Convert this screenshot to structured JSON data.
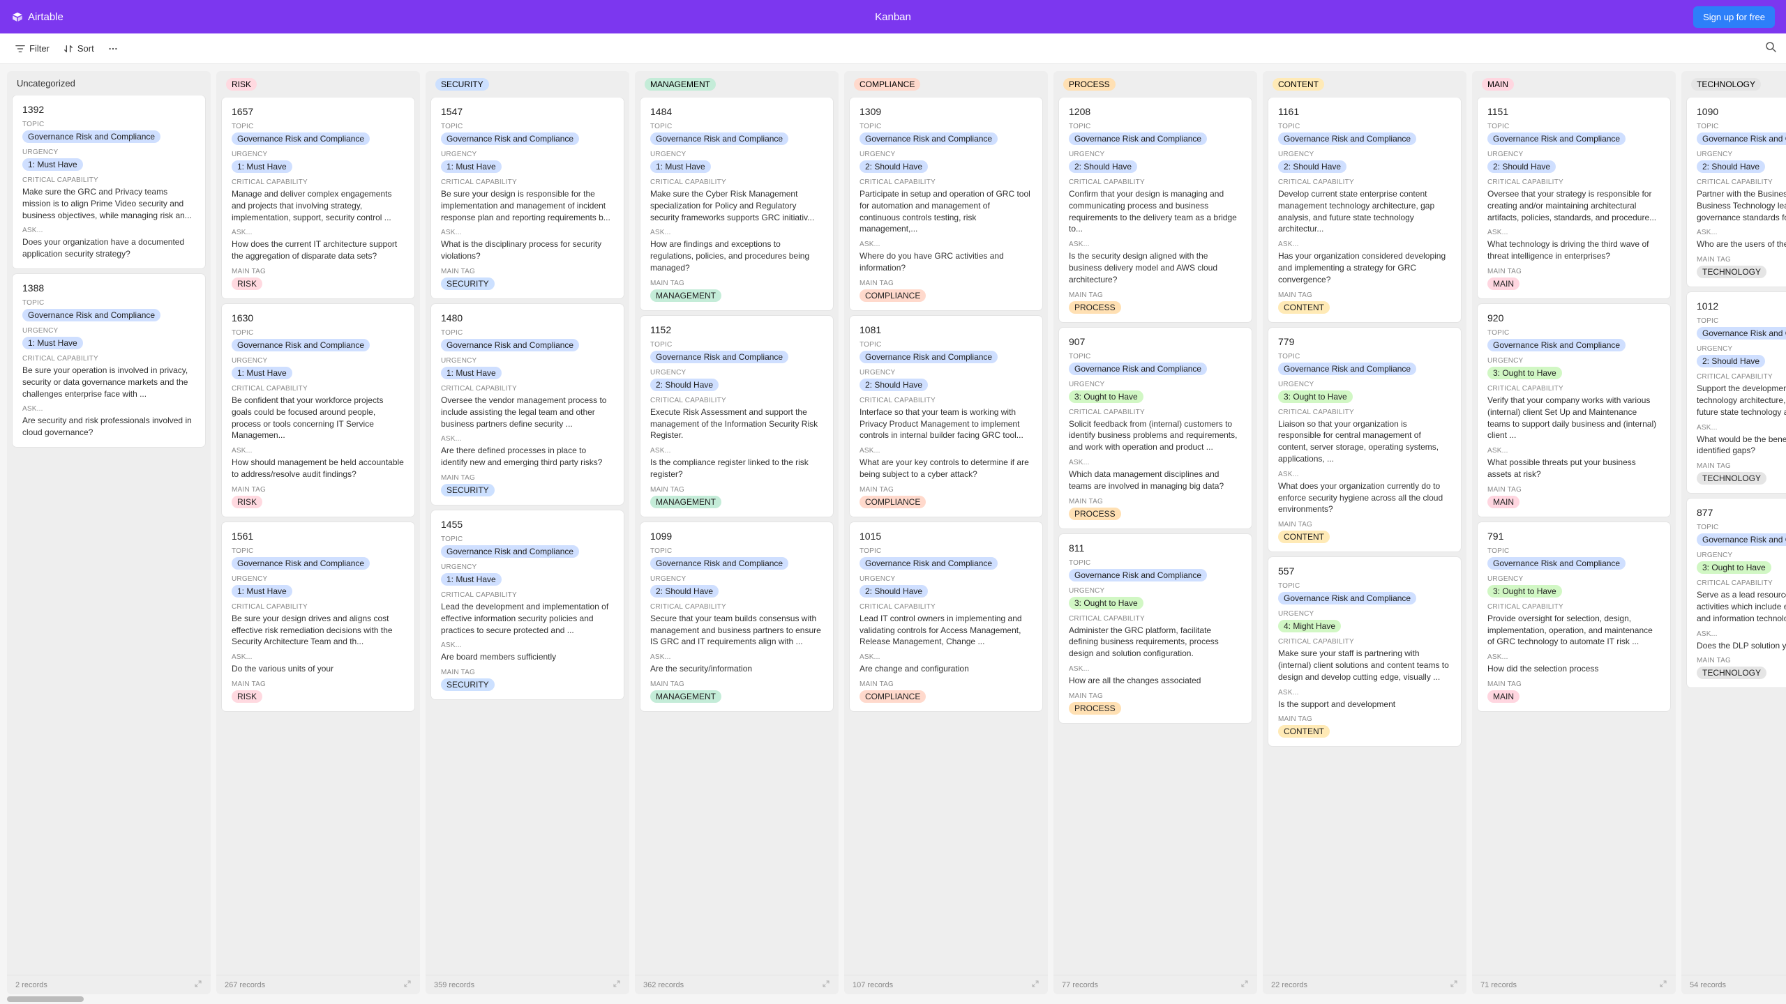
{
  "header": {
    "product": "Airtable",
    "view_title": "Kanban",
    "signup_label": "Sign up for free"
  },
  "toolbar": {
    "filter_label": "Filter",
    "sort_label": "Sort"
  },
  "field_labels": {
    "topic": "TOPIC",
    "urgency": "URGENCY",
    "capability": "CRITICAL CAPABILITY",
    "ask": "ASK...",
    "main_tag": "MAIN TAG"
  },
  "topic_pill": {
    "text": "Governance Risk and Compliance",
    "bg": "#cfdfff"
  },
  "urgency_colors": {
    "1: Must Have": "#cfdfff",
    "2: Should Have": "#cfdfff",
    "3: Ought to Have": "#d1f7c4",
    "4: Might Have": "#d1f7c4"
  },
  "tag_colors": {
    "RISK": "#ffd9e0",
    "SECURITY": "#cce0ff",
    "MANAGEMENT": "#c4ecd8",
    "COMPLIANCE": "#ffd9cc",
    "PROCESS": "#ffe0b3",
    "CONTENT": "#ffeab6",
    "MAIN": "#ffd6e0",
    "TECHNOLOGY": "#e5e5e5",
    "Uncategorized": ""
  },
  "columns": [
    {
      "name": "Uncategorized",
      "uncategorized": true,
      "records_label": "2 records",
      "cards": [
        {
          "id": "1392",
          "urgency": "1: Must Have",
          "capability": "Make sure the GRC and Privacy teams mission is to align Prime Video security and business objectives, while managing risk an...",
          "ask": "Does your organization have a documented application security strategy?",
          "main_tag": null
        },
        {
          "id": "1388",
          "urgency": "1: Must Have",
          "capability": "Be sure your operation is involved in privacy, security or data governance markets and the challenges enterprise face with ...",
          "ask": "Are security and risk professionals involved in cloud governance?",
          "main_tag": null
        }
      ]
    },
    {
      "name": "RISK",
      "records_label": "267 records",
      "cards": [
        {
          "id": "1657",
          "urgency": "1: Must Have",
          "capability": "Manage and deliver complex engagements and projects that involving strategy, implementation, support, security control ...",
          "ask": "How does the current IT architecture support the aggregation of disparate data sets?",
          "main_tag": "RISK"
        },
        {
          "id": "1630",
          "urgency": "1: Must Have",
          "capability": "Be confident that your workforce projects goals could be focused around people, process or tools concerning IT Service Managemen...",
          "ask": "How should management be held accountable to address/resolve audit findings?",
          "main_tag": "RISK"
        },
        {
          "id": "1561",
          "urgency": "1: Must Have",
          "capability": "Be sure your design drives and aligns cost effective risk remediation decisions with the Security Architecture Team and th...",
          "ask": "Do the various units of your",
          "main_tag": "RISK"
        }
      ]
    },
    {
      "name": "SECURITY",
      "records_label": "359 records",
      "cards": [
        {
          "id": "1547",
          "urgency": "1: Must Have",
          "capability": "Be sure your design is responsible for the implementation and management of incident response plan and reporting requirements b...",
          "ask": "What is the disciplinary process for security violations?",
          "main_tag": "SECURITY"
        },
        {
          "id": "1480",
          "urgency": "1: Must Have",
          "capability": "Oversee the vendor management process to include assisting the legal team and other business partners define security ...",
          "ask": "Are there defined processes in place to identify new and emerging third party risks?",
          "main_tag": "SECURITY"
        },
        {
          "id": "1455",
          "urgency": "1: Must Have",
          "capability": "Lead the development and implementation of effective information security policies and practices to secure protected and ...",
          "ask": "Are board members sufficiently",
          "main_tag": "SECURITY"
        }
      ]
    },
    {
      "name": "MANAGEMENT",
      "records_label": "362 records",
      "cards": [
        {
          "id": "1484",
          "urgency": "1: Must Have",
          "capability": "Make sure the Cyber Risk Management specialization for Policy and Regulatory security frameworks supports GRC initiativ...",
          "ask": "How are findings and exceptions to regulations, policies, and procedures being managed?",
          "main_tag": "MANAGEMENT"
        },
        {
          "id": "1152",
          "urgency": "2: Should Have",
          "capability": "Execute Risk Assessment and support the management of the Information Security Risk Register.",
          "ask": "Is the compliance register linked to the risk register?",
          "main_tag": "MANAGEMENT"
        },
        {
          "id": "1099",
          "urgency": "2: Should Have",
          "capability": "Secure that your team builds consensus with management and business partners to ensure IS GRC and IT requirements align with ...",
          "ask": "Are the security/information",
          "main_tag": "MANAGEMENT"
        }
      ]
    },
    {
      "name": "COMPLIANCE",
      "records_label": "107 records",
      "cards": [
        {
          "id": "1309",
          "urgency": "2: Should Have",
          "capability": "Participate in setup and operation of GRC tool for automation and management of continuous controls testing, risk management,...",
          "ask": "Where do you have GRC activities and information?",
          "main_tag": "COMPLIANCE"
        },
        {
          "id": "1081",
          "urgency": "2: Should Have",
          "capability": "Interface so that your team is working with Privacy Product Management to implement controls in internal builder facing GRC tool...",
          "ask": "What are your key controls to determine if are being subject to a cyber attack?",
          "main_tag": "COMPLIANCE"
        },
        {
          "id": "1015",
          "urgency": "2: Should Have",
          "capability": "Lead IT control owners in implementing and validating controls for Access Management, Release Management, Change ...",
          "ask": "Are change and configuration",
          "main_tag": "COMPLIANCE"
        }
      ]
    },
    {
      "name": "PROCESS",
      "records_label": "77 records",
      "cards": [
        {
          "id": "1208",
          "urgency": "2: Should Have",
          "capability": "Confirm that your design is managing and communicating process and business requirements to the delivery team as a bridge to...",
          "ask": "Is the security design aligned with the business delivery model and AWS cloud architecture?",
          "main_tag": "PROCESS"
        },
        {
          "id": "907",
          "urgency": "3: Ought to Have",
          "capability": "Solicit feedback from (internal) customers to identify business problems and requirements, and work with operation and product ...",
          "ask": "Which data management disciplines and teams are involved in managing big data?",
          "main_tag": "PROCESS"
        },
        {
          "id": "811",
          "urgency": "3: Ought to Have",
          "capability": "Administer the GRC platform, facilitate defining business requirements, process design and solution configuration.",
          "ask": "How are all the changes associated",
          "main_tag": "PROCESS"
        }
      ]
    },
    {
      "name": "CONTENT",
      "records_label": "22 records",
      "cards": [
        {
          "id": "1161",
          "urgency": "2: Should Have",
          "capability": "Develop current state enterprise content management technology architecture, gap analysis, and future state technology architectur...",
          "ask": "Has your organization considered developing and implementing a strategy for GRC convergence?",
          "main_tag": "CONTENT"
        },
        {
          "id": "779",
          "urgency": "3: Ought to Have",
          "capability": "Liaison so that your organization is responsible for central management of content, server storage, operating systems, applications, ...",
          "ask": "What does your organization currently do to enforce security hygiene across all the cloud environments?",
          "main_tag": "CONTENT"
        },
        {
          "id": "557",
          "urgency": "4: Might Have",
          "capability": "Make sure your staff is partnering with (internal) client solutions and content teams to design and develop cutting edge, visually ...",
          "ask": "Is the support and development",
          "main_tag": "CONTENT"
        }
      ]
    },
    {
      "name": "MAIN",
      "records_label": "71 records",
      "cards": [
        {
          "id": "1151",
          "urgency": "2: Should Have",
          "capability": "Oversee that your strategy is responsible for creating and/or maintaining architectural artifacts, policies, standards, and procedure...",
          "ask": "What technology is driving the third wave of threat intelligence in enterprises?",
          "main_tag": "MAIN"
        },
        {
          "id": "920",
          "urgency": "3: Ought to Have",
          "capability": "Verify that your company works with various (internal) client Set Up and Maintenance teams to support daily business and (internal) client ...",
          "ask": "What possible threats put your business assets at risk?",
          "main_tag": "MAIN"
        },
        {
          "id": "791",
          "urgency": "3: Ought to Have",
          "capability": "Provide oversight for selection, design, implementation, operation, and maintenance of GRC technology to automate IT risk ...",
          "ask": "How did the selection process",
          "main_tag": "MAIN"
        }
      ]
    },
    {
      "name": "TECHNOLOGY",
      "records_label": "54 records",
      "cards": [
        {
          "id": "1090",
          "urgency": "2: Should Have",
          "capability": "Partner with the Business Process Leads and Business Technology leaders to set data governance standards for the entire ...",
          "ask": "Who are the users of the tool or technology?",
          "main_tag": "TECHNOLOGY"
        },
        {
          "id": "1012",
          "urgency": "2: Should Have",
          "capability": "Support the development of current state EA technology architecture, gap analysis, and future state technology architectur...",
          "ask": "What would be the benefits of addressing the identified gaps?",
          "main_tag": "TECHNOLOGY"
        },
        {
          "id": "877",
          "urgency": "3: Ought to Have",
          "capability": "Serve as a lead resource for GRC program activities which include engaging business and information technology leadership...",
          "ask": "Does the DLP solution your",
          "main_tag": "TECHNOLOGY"
        }
      ]
    }
  ]
}
